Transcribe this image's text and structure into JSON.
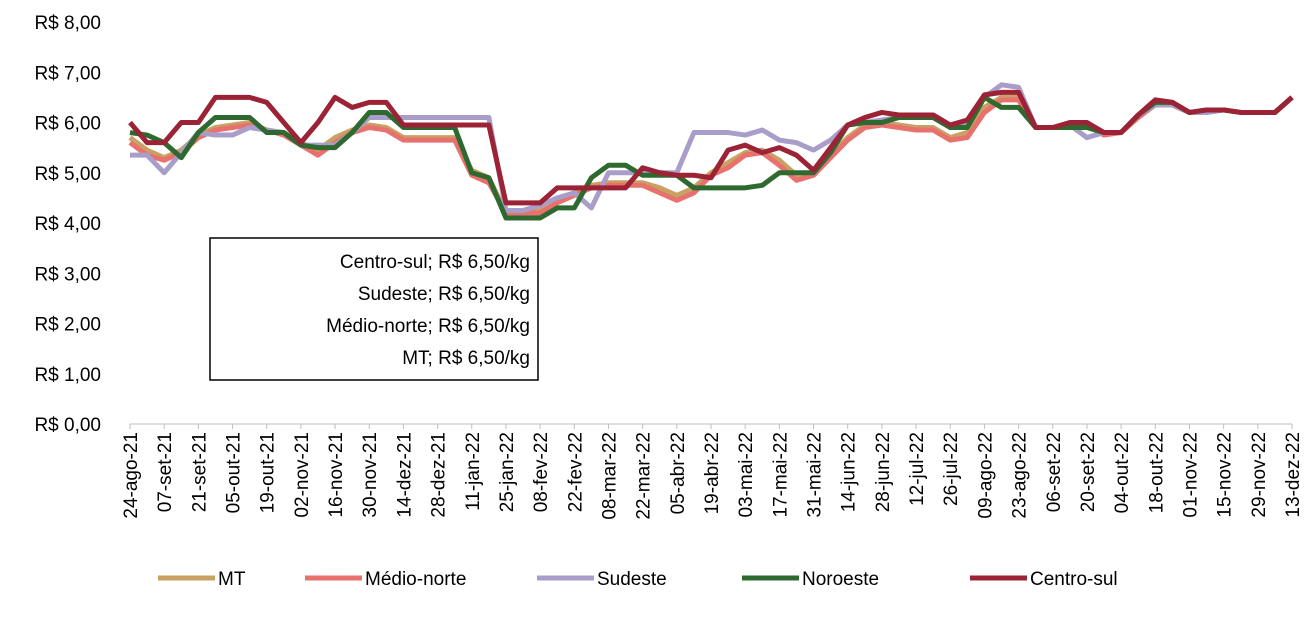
{
  "chart_data": {
    "type": "line",
    "categories": [
      "24-ago-21",
      null,
      "07-set-21",
      null,
      "21-set-21",
      null,
      "05-out-21",
      null,
      "19-out-21",
      null,
      "02-nov-21",
      null,
      "16-nov-21",
      null,
      "30-nov-21",
      null,
      "14-dez-21",
      null,
      "28-dez-21",
      null,
      "11-jan-22",
      null,
      "25-jan-22",
      null,
      "08-fev-22",
      null,
      "22-fev-22",
      null,
      "08-mar-22",
      null,
      "22-mar-22",
      null,
      "05-abr-22",
      null,
      "19-abr-22",
      null,
      "03-mai-22",
      null,
      "17-mai-22",
      null,
      "31-mai-22",
      null,
      "14-jun-22",
      null,
      "28-jun-22",
      null,
      "12-jul-22",
      null,
      "26-jul-22",
      null,
      "09-ago-22",
      null,
      "23-ago-22",
      null,
      "06-set-22",
      null,
      "20-set-22",
      null,
      "04-out-22",
      null,
      "18-out-22",
      null,
      "01-nov-22",
      null,
      "15-nov-22",
      null,
      "29-nov-22",
      null,
      "13-dez-22"
    ],
    "series": [
      {
        "name": "MT",
        "color": "#c9a263",
        "values": [
          5.7,
          5.45,
          5.3,
          5.45,
          5.75,
          5.9,
          5.95,
          6.0,
          5.85,
          5.8,
          5.6,
          5.45,
          5.7,
          5.85,
          5.95,
          5.9,
          5.7,
          5.7,
          5.7,
          5.7,
          5.05,
          4.9,
          4.2,
          4.2,
          4.25,
          4.45,
          4.6,
          4.75,
          4.8,
          4.8,
          4.8,
          4.7,
          4.55,
          4.7,
          5.0,
          5.2,
          5.4,
          5.45,
          5.25,
          4.95,
          5.0,
          5.35,
          5.7,
          5.95,
          6.0,
          5.95,
          5.9,
          5.9,
          5.7,
          5.8,
          6.3,
          6.5,
          6.5,
          5.9,
          5.9,
          5.95,
          5.95,
          5.8,
          5.8,
          6.15,
          6.4,
          6.35,
          6.2,
          6.2,
          6.25,
          6.2,
          6.2,
          6.2,
          6.5
        ]
      },
      {
        "name": "Médio-norte",
        "color": "#e8716d",
        "values": [
          5.6,
          5.35,
          5.25,
          5.4,
          5.7,
          5.85,
          5.9,
          5.95,
          5.85,
          5.75,
          5.55,
          5.35,
          5.6,
          5.8,
          5.9,
          5.85,
          5.65,
          5.65,
          5.65,
          5.65,
          4.95,
          4.8,
          4.2,
          4.2,
          4.2,
          4.4,
          4.55,
          4.7,
          4.75,
          4.75,
          4.75,
          4.6,
          4.45,
          4.6,
          4.95,
          5.1,
          5.35,
          5.4,
          5.15,
          4.85,
          4.95,
          5.3,
          5.65,
          5.9,
          5.95,
          5.9,
          5.85,
          5.85,
          5.65,
          5.7,
          6.2,
          6.45,
          6.45,
          5.9,
          5.9,
          5.95,
          5.95,
          5.75,
          5.8,
          6.1,
          6.35,
          6.35,
          6.2,
          6.2,
          6.25,
          6.2,
          6.2,
          6.2,
          6.5
        ]
      },
      {
        "name": "Sudeste",
        "color": "#a99dc9",
        "values": [
          5.35,
          5.35,
          5.0,
          5.4,
          5.8,
          5.75,
          5.75,
          5.9,
          5.85,
          5.8,
          5.55,
          5.55,
          5.55,
          5.8,
          6.1,
          6.1,
          6.1,
          6.1,
          6.1,
          6.1,
          6.1,
          6.1,
          4.25,
          4.25,
          4.35,
          4.5,
          4.6,
          4.3,
          5.0,
          5.0,
          5.0,
          5.0,
          5.0,
          5.8,
          5.8,
          5.8,
          5.75,
          5.85,
          5.65,
          5.6,
          5.45,
          5.65,
          5.95,
          6.0,
          6.05,
          6.1,
          6.1,
          6.1,
          5.9,
          5.95,
          6.5,
          6.75,
          6.7,
          5.9,
          5.9,
          5.95,
          5.7,
          5.8,
          5.8,
          6.15,
          6.35,
          6.35,
          6.2,
          6.2,
          6.25,
          6.2,
          6.2,
          6.2,
          6.5
        ]
      },
      {
        "name": "Noroeste",
        "color": "#2e6a2f",
        "values": [
          5.8,
          5.75,
          5.6,
          5.3,
          5.8,
          6.1,
          6.1,
          6.1,
          5.8,
          5.8,
          5.55,
          5.5,
          5.5,
          5.8,
          6.2,
          6.2,
          5.9,
          5.9,
          5.9,
          5.9,
          5.0,
          4.9,
          4.1,
          4.1,
          4.1,
          4.3,
          4.3,
          4.9,
          5.15,
          5.15,
          4.95,
          4.95,
          4.95,
          4.7,
          4.7,
          4.7,
          4.7,
          4.75,
          5.0,
          5.0,
          5.0,
          5.4,
          5.95,
          6.0,
          6.0,
          6.1,
          6.1,
          6.1,
          5.9,
          5.9,
          6.5,
          6.3,
          6.3,
          5.9,
          5.9,
          5.9,
          5.9,
          5.8,
          5.8,
          6.15,
          6.4,
          6.4,
          6.2,
          6.25,
          6.25,
          6.2,
          6.2,
          6.2,
          6.5
        ]
      },
      {
        "name": "Centro-sul",
        "color": "#9b2335",
        "values": [
          6.0,
          5.6,
          5.6,
          6.0,
          6.0,
          6.5,
          6.5,
          6.5,
          6.4,
          6.0,
          5.6,
          6.0,
          6.5,
          6.3,
          6.4,
          6.4,
          5.95,
          5.95,
          5.95,
          5.95,
          5.95,
          5.95,
          4.4,
          4.4,
          4.4,
          4.7,
          4.7,
          4.7,
          4.7,
          4.7,
          5.1,
          5.0,
          4.95,
          4.95,
          4.9,
          5.45,
          5.55,
          5.4,
          5.5,
          5.35,
          5.05,
          5.5,
          5.95,
          6.1,
          6.2,
          6.15,
          6.15,
          6.15,
          5.95,
          6.05,
          6.55,
          6.6,
          6.6,
          5.9,
          5.9,
          6.0,
          6.0,
          5.8,
          5.8,
          6.15,
          6.45,
          6.4,
          6.2,
          6.25,
          6.25,
          6.2,
          6.2,
          6.2,
          6.5
        ]
      }
    ],
    "ylim": [
      0,
      8
    ],
    "yticks": [
      {
        "value": 0,
        "label": "R$ 0,00"
      },
      {
        "value": 1,
        "label": "R$ 1,00"
      },
      {
        "value": 2,
        "label": "R$ 2,00"
      },
      {
        "value": 3,
        "label": "R$ 3,00"
      },
      {
        "value": 4,
        "label": "R$ 4,00"
      },
      {
        "value": 5,
        "label": "R$ 5,00"
      },
      {
        "value": 6,
        "label": "R$ 6,00"
      },
      {
        "value": 7,
        "label": "R$ 7,00"
      },
      {
        "value": 8,
        "label": "R$ 8,00"
      }
    ],
    "grid": false,
    "legend": "bottom",
    "annotation": [
      "Centro-sul; R$ 6,50/kg",
      "Sudeste; R$ 6,50/kg",
      "Médio-norte; R$ 6,50/kg",
      "MT; R$ 6,50/kg"
    ]
  }
}
